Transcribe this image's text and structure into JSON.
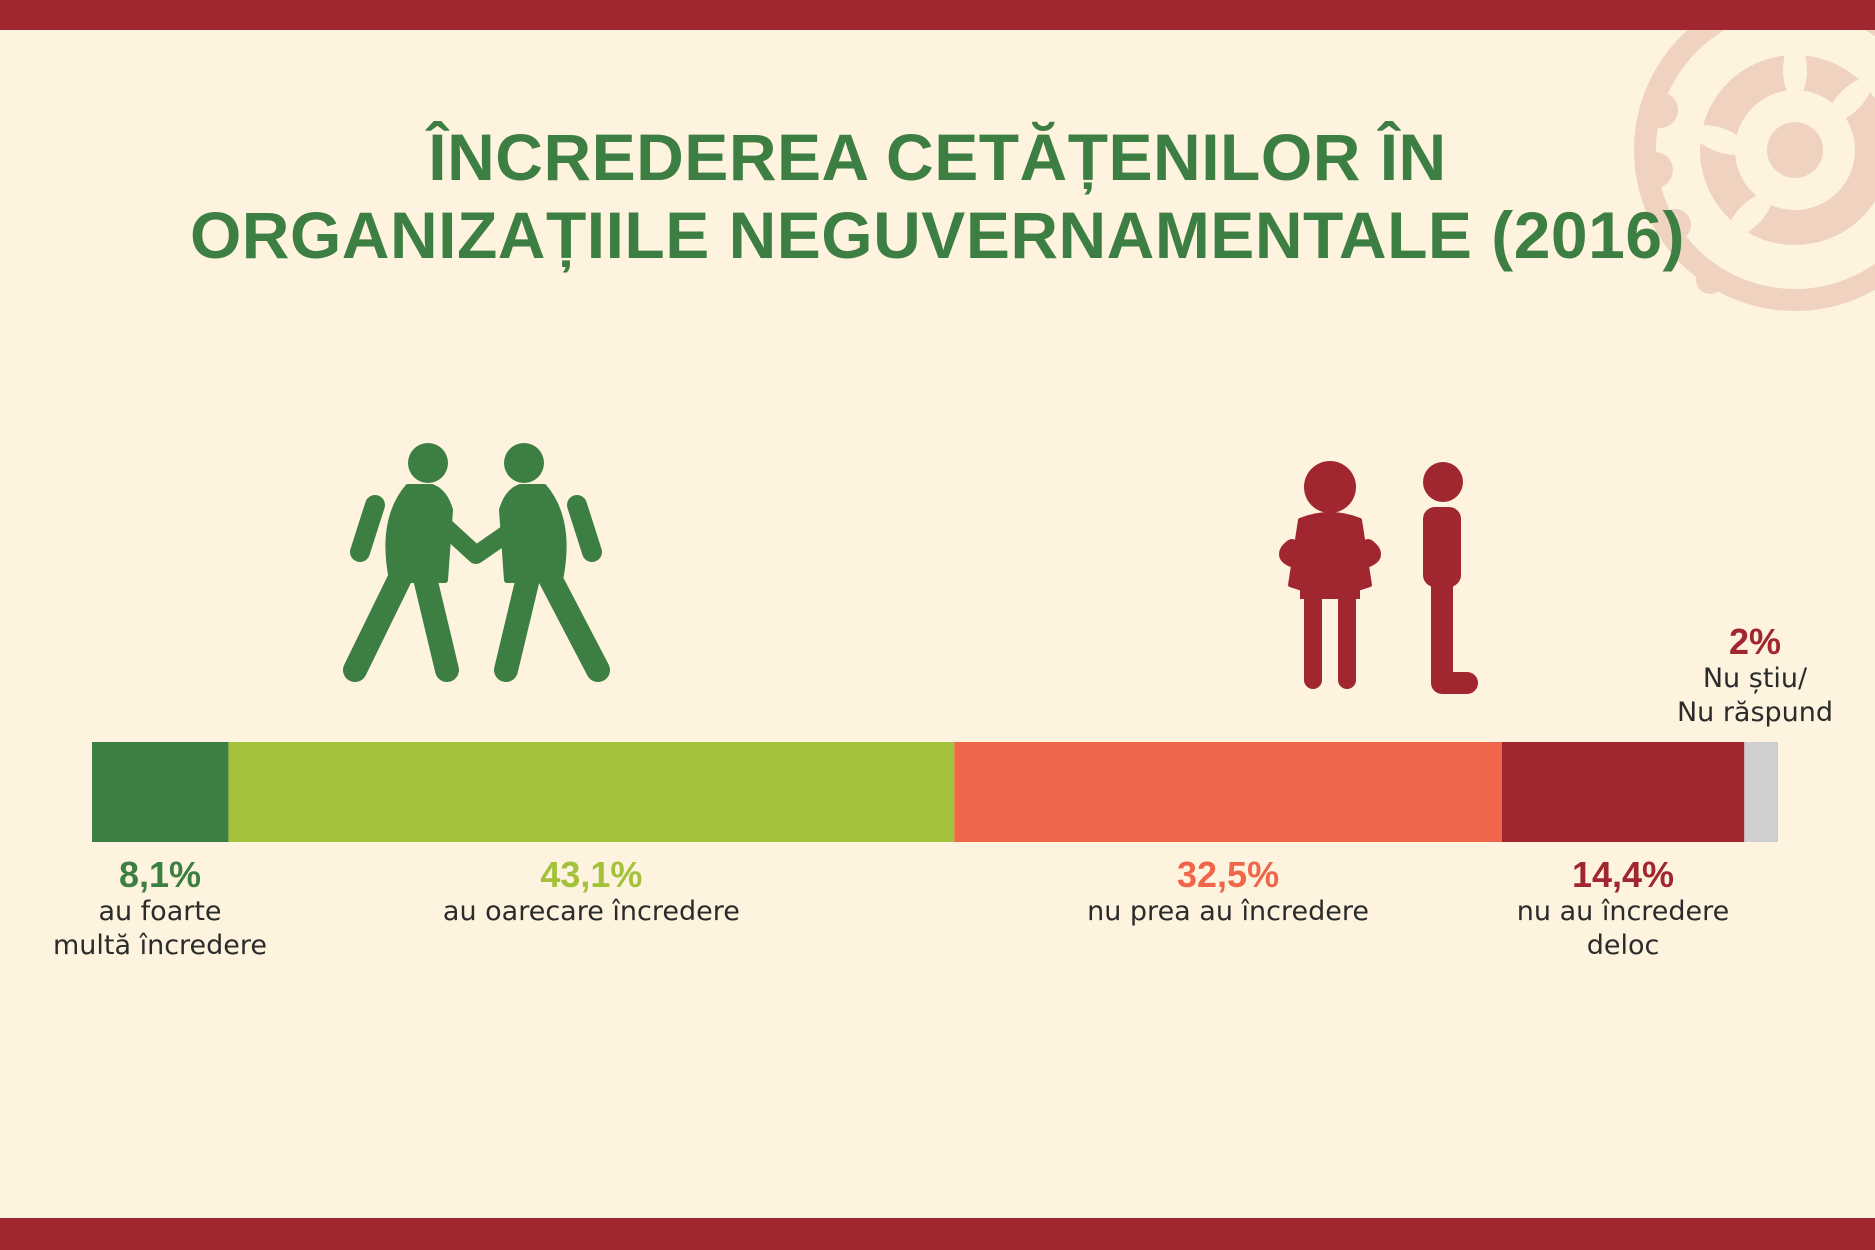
{
  "header": {
    "title_line1": "ÎNCREDEREA CETĂȚENILOR ÎN",
    "title_line2": "ORGANIZAȚIILE NEGUVERNAMENTALE (2016)"
  },
  "colors": {
    "background": "#fdf3df",
    "accent_band": "#a02730",
    "title": "#3d7f43",
    "trust_icon": "#3d7f43",
    "distrust_icon": "#a02730",
    "decor": "#efd2c0"
  },
  "icons": {
    "trust": "two-people-shaking-hands-icon",
    "distrust": "two-people-arms-crossed-icon",
    "decor": "ornamental-rosette-icon"
  },
  "chart_data": {
    "type": "bar",
    "orientation": "horizontal-stacked",
    "title": "ÎNCREDEREA CETĂȚENILOR ÎN ORGANIZAȚIILE NEGUVERNAMENTALE (2016)",
    "unit": "%",
    "xlim": [
      0,
      100.1
    ],
    "series": [
      {
        "name": "au foarte\nmultă încredere",
        "value": 8.1,
        "label": "8,1%",
        "color": "#3d7f43"
      },
      {
        "name": "au oarecare încredere",
        "value": 43.1,
        "label": "43,1%",
        "color": "#a3c13a"
      },
      {
        "name": "nu prea au încredere",
        "value": 32.5,
        "label": "32,5%",
        "color": "#ef664a"
      },
      {
        "name": "nu au încredere\ndeloc",
        "value": 14.4,
        "label": "14,4%",
        "color": "#a02730"
      },
      {
        "name": "Nu știu/\nNu răspund",
        "value": 2,
        "label": "2%",
        "color": "#cfcfcf"
      }
    ]
  }
}
